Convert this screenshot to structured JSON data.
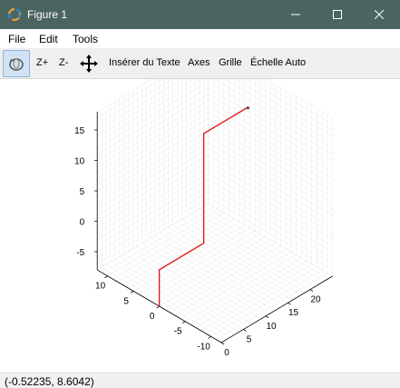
{
  "window": {
    "title": "Figure 1",
    "icon": "octave-logo-icon",
    "controls": [
      "minimize-icon",
      "maximize-icon",
      "close-icon"
    ]
  },
  "menu": {
    "items": [
      "File",
      "Edit",
      "Tools"
    ]
  },
  "toolbar": {
    "rotate_icon": "rotate-3d-icon",
    "zoom_in": "Z+",
    "zoom_out": "Z-",
    "pan_icon": "pan-arrows-icon",
    "insert_text": "Insérer du Texte",
    "axes": "Axes",
    "grid": "Grille",
    "autoscale": "Échelle Auto",
    "active": "rotate"
  },
  "chart_data": {
    "type": "line3d",
    "title": "",
    "grid": true,
    "view": "3d-box",
    "xlim": [
      0,
      25
    ],
    "ylim": [
      -12,
      12
    ],
    "zlim": [
      -8,
      18
    ],
    "x_ticks": [
      0,
      5,
      10,
      15,
      20
    ],
    "y_ticks": [
      -10,
      -5,
      0,
      5,
      10
    ],
    "z_ticks": [
      -5,
      0,
      5,
      10,
      15
    ],
    "series": [
      {
        "color": "#e41a1c",
        "points": [
          [
            0,
            0,
            -8
          ],
          [
            0,
            0,
            -2
          ],
          [
            10,
            0,
            -2
          ],
          [
            10,
            0,
            16
          ],
          [
            20,
            0,
            16
          ]
        ]
      }
    ],
    "marker": {
      "label": "*",
      "point": [
        20,
        0,
        16
      ]
    }
  },
  "status": {
    "coords": "(-0.52235, 8.6042)"
  }
}
